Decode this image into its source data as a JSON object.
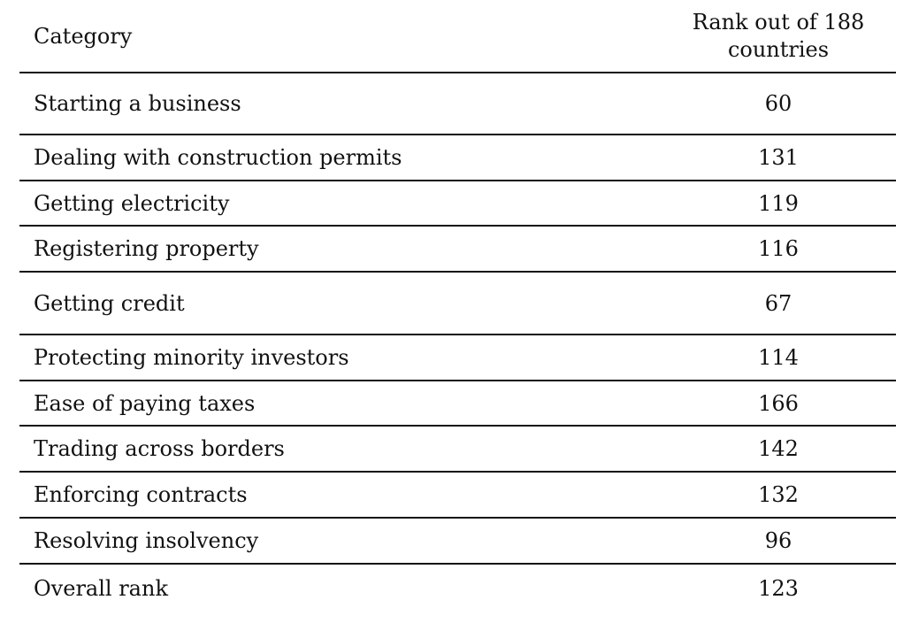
{
  "table": {
    "headers": {
      "category": "Category",
      "rank_line1": "Rank out of 188",
      "rank_line2": "countries"
    },
    "rows": [
      {
        "category": "Starting a business",
        "rank": "60"
      },
      {
        "category": "Dealing with construction permits",
        "rank": "131"
      },
      {
        "category": "Getting electricity",
        "rank": "119"
      },
      {
        "category": "Registering property",
        "rank": "116"
      },
      {
        "category": "Getting credit",
        "rank": "67"
      },
      {
        "category": "Protecting minority investors",
        "rank": "114"
      },
      {
        "category": "Ease of paying taxes",
        "rank": "166"
      },
      {
        "category": "Trading across borders",
        "rank": "142"
      },
      {
        "category": "Enforcing contracts",
        "rank": "132"
      },
      {
        "category": "Resolving insolvency",
        "rank": "96"
      },
      {
        "category": "Overall rank",
        "rank": "123"
      }
    ]
  }
}
